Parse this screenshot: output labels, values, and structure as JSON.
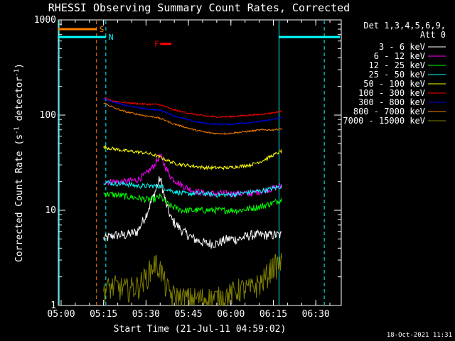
{
  "chart_data": {
    "type": "line",
    "title": "RHESSI Observing Summary Count Rates, Corrected",
    "xlabel": "Start Time (21-Jul-11 04:59:02)",
    "ylabel": "Corrected Count Rate (s⁻¹ detector⁻¹)",
    "ylabel_parts": {
      "prefix": "Corrected Count Rate (s",
      "exp1": "-1",
      "mid": " detector",
      "exp2": "-1",
      "suffix": ")"
    },
    "x_unit": "minutes",
    "xlim": [
      0,
      100
    ],
    "x_ticks": [
      {
        "t": 1,
        "label": "05:00"
      },
      {
        "t": 16,
        "label": "05:15"
      },
      {
        "t": 31,
        "label": "05:30"
      },
      {
        "t": 46,
        "label": "05:45"
      },
      {
        "t": 61,
        "label": "06:00"
      },
      {
        "t": 76,
        "label": "06:15"
      },
      {
        "t": 91,
        "label": "06:30"
      }
    ],
    "y_scale": "log",
    "ylim": [
      1,
      1000
    ],
    "y_ticks": [
      {
        "v": 1,
        "label": "1"
      },
      {
        "v": 10,
        "label": "10"
      },
      {
        "v": 100,
        "label": "100"
      },
      {
        "v": 1000,
        "label": "1000"
      }
    ],
    "legend_header": [
      "Det 1,3,4,5,6,9,",
      "Att 0"
    ],
    "legend_position": "top-right",
    "series": [
      {
        "name": "3 - 6 keV",
        "color": "#ffffff",
        "x": [
          16,
          20,
          24,
          28,
          31,
          34,
          36,
          38,
          40,
          44,
          48,
          52,
          56,
          60,
          64,
          68,
          72,
          76,
          79
        ],
        "values": [
          5,
          5.5,
          5.5,
          6,
          9,
          15,
          22,
          12,
          8,
          6,
          5,
          4.5,
          4.5,
          5,
          5,
          5.5,
          5.5,
          5.5,
          5.5
        ]
      },
      {
        "name": "6 - 12 keV",
        "color": "#ff00ff",
        "x": [
          16,
          20,
          24,
          28,
          31,
          34,
          36,
          38,
          40,
          44,
          48,
          52,
          56,
          60,
          64,
          68,
          72,
          76,
          79
        ],
        "values": [
          20,
          20,
          20,
          21,
          24,
          30,
          38,
          28,
          22,
          18,
          16,
          15,
          15,
          15,
          15,
          15,
          16,
          17,
          18
        ]
      },
      {
        "name": "12 - 25 keV",
        "color": "#00ff00",
        "x": [
          16,
          20,
          24,
          28,
          31,
          34,
          36,
          38,
          40,
          44,
          48,
          52,
          56,
          60,
          64,
          68,
          72,
          76,
          79
        ],
        "values": [
          15,
          14.5,
          14,
          13.5,
          13,
          13,
          14,
          12,
          11,
          10,
          10,
          10,
          10,
          10,
          10,
          10.5,
          11,
          12,
          13
        ]
      },
      {
        "name": "25 - 50 keV",
        "color": "#00ffff",
        "x": [
          16,
          20,
          24,
          28,
          31,
          34,
          36,
          38,
          40,
          44,
          48,
          52,
          56,
          60,
          64,
          68,
          72,
          76,
          79
        ],
        "values": [
          20,
          19,
          19,
          18,
          18,
          18,
          18,
          17,
          16,
          15,
          15,
          15,
          14.5,
          14.5,
          15,
          15.5,
          16,
          17,
          18
        ]
      },
      {
        "name": "50 - 100 keV",
        "color": "#ffff00",
        "x": [
          16,
          20,
          24,
          28,
          31,
          34,
          36,
          38,
          40,
          44,
          48,
          52,
          56,
          60,
          64,
          68,
          72,
          76,
          79
        ],
        "values": [
          46,
          44,
          42,
          41,
          40,
          38,
          36,
          34,
          32,
          30,
          29,
          28,
          28,
          28,
          29,
          30,
          33,
          38,
          42
        ]
      },
      {
        "name": "100 - 300 keV",
        "color": "#ff0000",
        "x": [
          16,
          20,
          24,
          28,
          31,
          34,
          36,
          38,
          40,
          44,
          48,
          52,
          56,
          60,
          64,
          68,
          72,
          76,
          79
        ],
        "values": [
          150,
          140,
          135,
          132,
          130,
          130,
          128,
          122,
          115,
          108,
          102,
          98,
          96,
          96,
          98,
          100,
          102,
          106,
          110
        ]
      },
      {
        "name": "300 - 800 keV",
        "color": "#0000ff",
        "x": [
          16,
          20,
          24,
          28,
          31,
          34,
          36,
          38,
          40,
          44,
          48,
          52,
          56,
          60,
          64,
          68,
          72,
          76,
          79
        ],
        "values": [
          150,
          135,
          126,
          120,
          116,
          114,
          112,
          108,
          100,
          92,
          86,
          82,
          80,
          80,
          82,
          84,
          86,
          90,
          95
        ]
      },
      {
        "name": "800 - 7000 keV",
        "color": "#ff8000",
        "x": [
          16,
          20,
          24,
          28,
          31,
          34,
          36,
          38,
          40,
          44,
          48,
          52,
          56,
          60,
          64,
          68,
          72,
          76,
          79
        ],
        "values": [
          135,
          118,
          108,
          102,
          98,
          96,
          92,
          88,
          82,
          76,
          70,
          66,
          64,
          64,
          66,
          68,
          70,
          70,
          72
        ]
      },
      {
        "name": "7000 - 15000 keV",
        "color": "#808000",
        "x": [
          16,
          20,
          24,
          28,
          31,
          34,
          36,
          38,
          40,
          44,
          48,
          52,
          56,
          60,
          64,
          68,
          72,
          76,
          79
        ],
        "values": [
          1.5,
          1.6,
          1.5,
          1.6,
          2.0,
          2.8,
          2.5,
          1.6,
          1.3,
          1.2,
          1.2,
          1.2,
          1.2,
          1.3,
          1.5,
          1.5,
          1.8,
          2.6,
          2.8
        ]
      }
    ],
    "annotations": {
      "vertical_lines": [
        {
          "t": 0.3,
          "color": "#00ffff",
          "style": "solid"
        },
        {
          "t": 13.5,
          "color": "#ff8000",
          "style": "dashed"
        },
        {
          "t": 16.8,
          "color": "#00ffff",
          "style": "dashed"
        },
        {
          "t": 78,
          "color": "#00ffff",
          "style": "solid"
        },
        {
          "t": 94,
          "color": "#00ffff",
          "style": "dashed"
        }
      ],
      "bars": [
        {
          "label": "S",
          "t0": 0,
          "t1": 13.5,
          "color": "#ff8000",
          "value": 800
        },
        {
          "label": "N",
          "t0": 0,
          "t1": 16.8,
          "color": "#00ffff",
          "value": 660
        },
        {
          "label": "F",
          "t0": 36,
          "t1": 40,
          "color": "#ff0000",
          "value": 560
        },
        {
          "label": "",
          "t0": 78,
          "t1": 99.5,
          "color": "#00ffff",
          "value": 660
        }
      ]
    }
  },
  "footer": {
    "timestamp": "18-Oct-2021 11:31"
  }
}
